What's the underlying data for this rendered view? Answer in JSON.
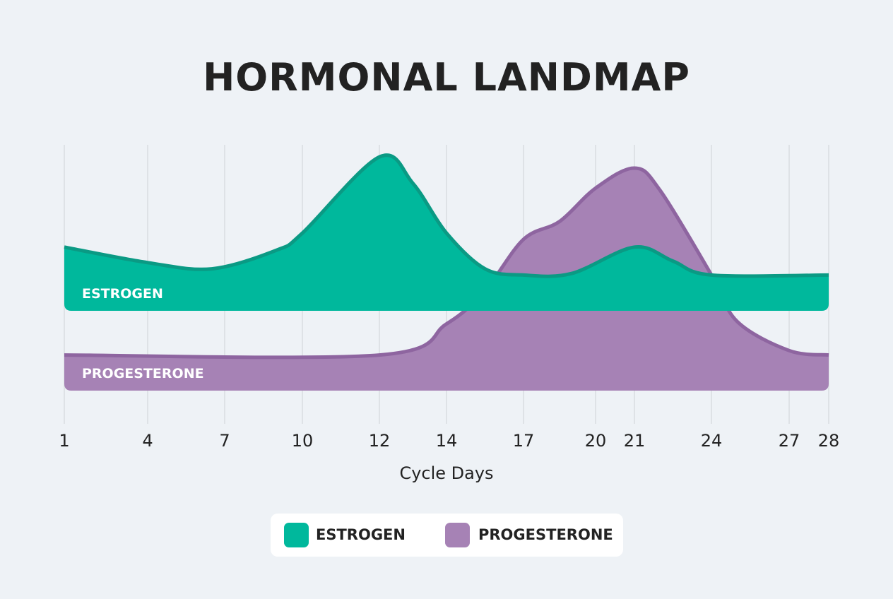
{
  "chart_data": {
    "type": "area",
    "title": "HORMONAL LANDMAP",
    "xlabel": "Cycle Days",
    "ylabel": "",
    "x_ticks": [
      1,
      4,
      7,
      10,
      12,
      14,
      17,
      20,
      21,
      24,
      27,
      28
    ],
    "grid": "vertical",
    "legend_placement": "bottom",
    "series": [
      {
        "name": "ESTROGEN",
        "color": "#00b89c",
        "stroke": "#0a9a84",
        "x": [
          1,
          4,
          6.5,
          9,
          10,
          12,
          13,
          14,
          15.5,
          17,
          19,
          21,
          22.5,
          24,
          28
        ],
        "values": [
          41,
          31,
          27,
          39,
          50,
          99,
          82,
          50,
          27,
          23,
          24,
          41,
          32,
          23,
          23
        ]
      },
      {
        "name": "PROGESTERONE",
        "color": "#a682b5",
        "stroke": "#8e65a0",
        "x": [
          1,
          12,
          14,
          15.5,
          17,
          18.5,
          20,
          21,
          22,
          24,
          25,
          27,
          28
        ],
        "values": [
          16,
          16,
          30,
          45,
          68,
          76,
          91,
          100,
          90,
          52,
          31,
          18,
          16
        ]
      }
    ]
  }
}
